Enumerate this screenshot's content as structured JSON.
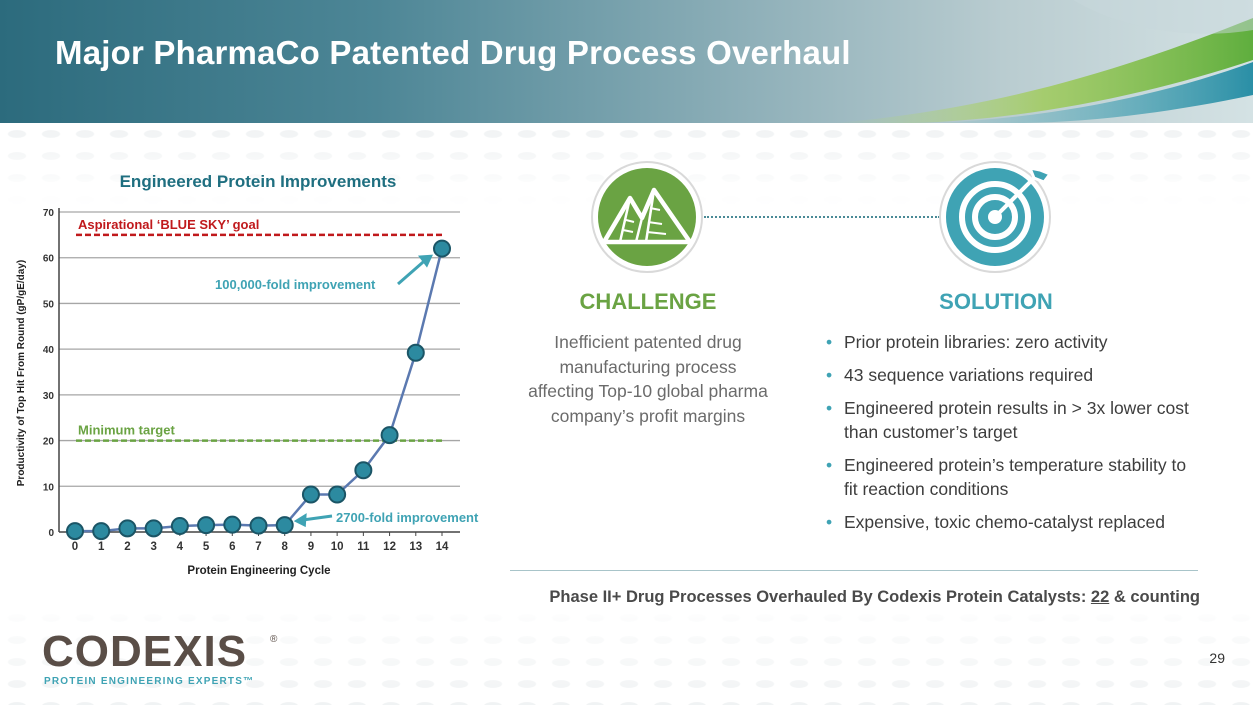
{
  "slide": {
    "title": "Major PharmaCo Patented Drug Process Overhaul",
    "page_number": "29"
  },
  "colors": {
    "challenge": "#6aa343",
    "solution": "#3fa3b4",
    "goal_line": "#c0191c",
    "min_line": "#6aa343",
    "series_line": "#5b79b0",
    "marker_fill": "#2c8aa0",
    "marker_stroke": "#1b5566",
    "callout": "#3fa3b4"
  },
  "chart_data": {
    "type": "line",
    "title": "Engineered Protein Improvements",
    "xlabel": "Protein Engineering Cycle",
    "ylabel": "Productivity of Top Hit From Round (gP/gE/day)",
    "xlim": [
      0,
      14
    ],
    "ylim": [
      0,
      70
    ],
    "x_ticks": [
      "0",
      "1",
      "2",
      "3",
      "4",
      "5",
      "6",
      "7",
      "8",
      "9",
      "10",
      "11",
      "12",
      "13",
      "14"
    ],
    "y_ticks": [
      "0",
      "10",
      "20",
      "30",
      "40",
      "50",
      "60",
      "70"
    ],
    "grid": "horizontal",
    "series": [
      {
        "x": [
          0,
          1,
          2,
          3,
          4,
          5,
          6,
          7,
          8,
          9,
          10,
          11,
          12,
          13,
          14
        ],
        "values": [
          0.2,
          0.2,
          0.8,
          0.8,
          1.3,
          1.5,
          1.6,
          1.4,
          1.5,
          8.2,
          8.2,
          13.5,
          21.2,
          39.2,
          62
        ]
      }
    ],
    "reference_lines": [
      {
        "label": "Aspirational ‘BLUE SKY’ goal",
        "y": 65
      },
      {
        "label": "Minimum target",
        "y": 20
      }
    ],
    "annotations": [
      {
        "text": "100,000-fold improvement",
        "target_x": 14,
        "target_y": 62
      },
      {
        "text": "2700-fold improvement",
        "target_x": 8,
        "target_y": 1.5
      }
    ]
  },
  "challenge": {
    "heading": "CHALLENGE",
    "icon": "mountains-icon",
    "text": "Inefficient patented drug manufacturing process affecting Top-10 global pharma company’s profit margins"
  },
  "solution": {
    "heading": "SOLUTION",
    "icon": "target-arrow-icon",
    "bullets": [
      "Prior protein libraries:  zero activity",
      "43 sequence variations required",
      "Engineered protein results in > 3x lower cost than customer’s target",
      "Engineered protein’s temperature stability to fit reaction conditions",
      "Expensive, toxic chemo-catalyst replaced"
    ]
  },
  "footer": {
    "statement": "Phase II+ Drug Processes Overhauled By Codexis Protein Catalysts:  ",
    "count": "22",
    "suffix": " & counting"
  },
  "logo": {
    "name": "CODEXIS",
    "tagline": "PROTEIN ENGINEERING EXPERTS™"
  }
}
